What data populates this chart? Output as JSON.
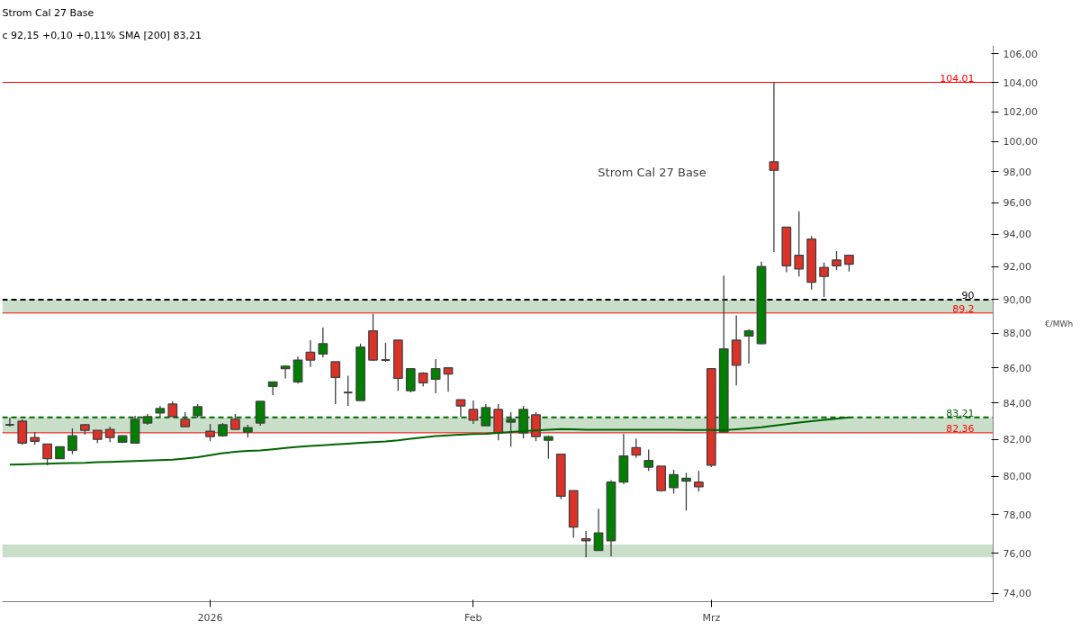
{
  "chart_data": {
    "type": "candlestick",
    "title": "Strom Cal 27 Base",
    "subtitle": "c 92,15 +0,10 +0,11% SMA [200] 83,21",
    "ylabel": "€/MWh",
    "categories": [
      null,
      null,
      null,
      null,
      null,
      null,
      null,
      null,
      null,
      null,
      null,
      null,
      null,
      null,
      null,
      null,
      "2026",
      null,
      null,
      null,
      null,
      null,
      null,
      null,
      null,
      null,
      null,
      null,
      null,
      null,
      null,
      null,
      null,
      null,
      null,
      null,
      null,
      "Feb",
      null,
      null,
      null,
      null,
      null,
      null,
      null,
      null,
      null,
      null,
      null,
      null,
      null,
      null,
      null,
      null,
      null,
      null,
      "Mrz",
      null,
      null,
      null,
      null,
      null,
      null,
      null,
      null,
      null,
      null,
      null
    ],
    "ohlc": [
      [
        82.8,
        83.2,
        82.7,
        82.8
      ],
      [
        83.0,
        83.1,
        81.7,
        81.8
      ],
      [
        82.1,
        82.4,
        81.7,
        81.9
      ],
      [
        81.75,
        81.75,
        80.6,
        80.95
      ],
      [
        80.95,
        81.6,
        80.95,
        81.6
      ],
      [
        81.4,
        82.6,
        81.2,
        82.2
      ],
      [
        82.8,
        82.85,
        82.25,
        82.5
      ],
      [
        82.5,
        82.5,
        81.8,
        82.0
      ],
      [
        82.55,
        82.7,
        81.85,
        82.1
      ],
      [
        81.85,
        82.2,
        81.8,
        82.2
      ],
      [
        81.8,
        83.3,
        81.8,
        83.1
      ],
      [
        82.9,
        83.4,
        82.8,
        83.25
      ],
      [
        83.45,
        83.85,
        83.25,
        83.7
      ],
      [
        83.95,
        84.1,
        83.25,
        83.25
      ],
      [
        83.1,
        83.5,
        82.7,
        82.7
      ],
      [
        83.3,
        83.95,
        83.2,
        83.8
      ],
      [
        82.45,
        82.85,
        81.9,
        82.15
      ],
      [
        82.2,
        82.9,
        82.15,
        82.8
      ],
      [
        83.1,
        83.4,
        82.55,
        82.55
      ],
      [
        82.4,
        82.8,
        82.1,
        82.65
      ],
      [
        82.9,
        84.1,
        82.75,
        84.1
      ],
      [
        84.95,
        85.2,
        84.45,
        85.2
      ],
      [
        85.95,
        86.15,
        85.4,
        86.1
      ],
      [
        85.2,
        86.65,
        85.1,
        86.45
      ],
      [
        86.9,
        87.6,
        86.05,
        86.45
      ],
      [
        86.8,
        88.35,
        86.6,
        87.4
      ],
      [
        86.35,
        86.35,
        83.95,
        85.45
      ],
      [
        84.6,
        85.55,
        83.85,
        84.6
      ],
      [
        84.15,
        87.4,
        84.15,
        87.2
      ],
      [
        88.15,
        89.15,
        86.4,
        86.45
      ],
      [
        86.45,
        87.45,
        86.35,
        86.45
      ],
      [
        87.6,
        87.6,
        84.7,
        85.4
      ],
      [
        84.7,
        85.95,
        84.6,
        85.95
      ],
      [
        85.7,
        85.75,
        84.95,
        85.15
      ],
      [
        85.35,
        86.5,
        84.55,
        85.95
      ],
      [
        86.0,
        86.0,
        84.65,
        85.65
      ],
      [
        84.2,
        84.2,
        83.25,
        83.85
      ],
      [
        83.65,
        84.15,
        82.85,
        83.05
      ],
      [
        82.75,
        83.95,
        82.75,
        83.75
      ],
      [
        83.65,
        83.95,
        81.95,
        82.35
      ],
      [
        82.95,
        83.5,
        81.6,
        83.1
      ],
      [
        82.35,
        83.85,
        82.05,
        83.65
      ],
      [
        83.35,
        83.5,
        81.9,
        82.15
      ],
      [
        81.95,
        82.2,
        80.95,
        82.15
      ],
      [
        81.2,
        81.2,
        78.8,
        78.95
      ],
      [
        79.25,
        79.25,
        76.8,
        77.35
      ],
      [
        76.75,
        77.15,
        75.8,
        76.65
      ],
      [
        76.15,
        78.3,
        76.15,
        77.05
      ],
      [
        76.65,
        79.8,
        75.85,
        79.7
      ],
      [
        79.7,
        82.3,
        79.6,
        81.1
      ],
      [
        81.55,
        82.05,
        81.0,
        81.15
      ],
      [
        80.5,
        81.45,
        80.3,
        80.85
      ],
      [
        80.55,
        80.55,
        79.2,
        79.25
      ],
      [
        79.4,
        80.35,
        79.1,
        80.1
      ],
      [
        79.75,
        80.2,
        78.2,
        79.9
      ],
      [
        79.7,
        80.3,
        79.2,
        79.45
      ],
      [
        85.95,
        85.95,
        80.5,
        80.6
      ],
      [
        82.4,
        91.45,
        82.4,
        87.1
      ],
      [
        87.6,
        89.05,
        85.0,
        86.15
      ],
      [
        87.85,
        88.25,
        86.25,
        88.15
      ],
      [
        87.4,
        92.3,
        87.35,
        92.0
      ],
      [
        98.65,
        104.01,
        92.9,
        98.1
      ],
      [
        94.45,
        94.45,
        91.65,
        92.05
      ],
      [
        92.7,
        95.45,
        91.4,
        91.85
      ],
      [
        93.7,
        93.9,
        90.6,
        91.05
      ],
      [
        91.95,
        92.25,
        90.15,
        91.4
      ],
      [
        92.4,
        92.95,
        91.8,
        92.05
      ],
      [
        92.7,
        92.7,
        91.7,
        92.15
      ]
    ],
    "series": [
      {
        "type": "line",
        "color": "#006400",
        "values": [
          80.63,
          80.65,
          80.67,
          80.68,
          80.7,
          80.72,
          80.73,
          80.76,
          80.78,
          80.8,
          80.83,
          80.85,
          80.87,
          80.9,
          80.96,
          81.03,
          81.14,
          81.25,
          81.32,
          81.37,
          81.4,
          81.46,
          81.53,
          81.59,
          81.64,
          81.68,
          81.73,
          81.77,
          81.81,
          81.85,
          81.89,
          81.95,
          82.03,
          82.11,
          82.18,
          82.22,
          82.26,
          82.29,
          82.31,
          82.36,
          82.41,
          82.45,
          82.49,
          82.53,
          82.56,
          82.55,
          82.53,
          82.53,
          82.53,
          82.53,
          82.53,
          82.53,
          82.53,
          82.53,
          82.52,
          82.51,
          82.51,
          82.5,
          82.55,
          82.6,
          82.66,
          82.75,
          82.84,
          82.93,
          83.0,
          83.07,
          83.14,
          83.21
        ]
      }
    ],
    "ylim": [
      73.6,
      106.6
    ],
    "log": true,
    "yticks": [
      {
        "value": 74,
        "label": "74,00"
      },
      {
        "value": 76,
        "label": "76,00"
      },
      {
        "value": 78,
        "label": "78,00"
      },
      {
        "value": 80,
        "label": "80,00"
      },
      {
        "value": 82,
        "label": "82,00"
      },
      {
        "value": 84,
        "label": "84,00"
      },
      {
        "value": 86,
        "label": "86,00"
      },
      {
        "value": 88,
        "label": "88,00"
      },
      {
        "value": 90,
        "label": "90,00"
      },
      {
        "value": 92,
        "label": "92,00"
      },
      {
        "value": 94,
        "label": "94,00"
      },
      {
        "value": 96,
        "label": "96,00"
      },
      {
        "value": 98,
        "label": "98,00"
      },
      {
        "value": 100,
        "label": "100,00"
      },
      {
        "value": 102,
        "label": "102,00"
      },
      {
        "value": 104,
        "label": "104,00"
      },
      {
        "value": 106,
        "label": "106,00"
      }
    ],
    "ref_lines": [
      {
        "axis": "y",
        "value": 104.01,
        "label": "104,01",
        "color": "#ff0000",
        "line_style": "solid"
      },
      {
        "axis": "y",
        "value": 90,
        "label": "90",
        "color": "#000000",
        "line_style": "dashed"
      },
      {
        "axis": "y",
        "value": 89.2,
        "label": "89,2",
        "color": "#ff0000",
        "line_style": "solid"
      },
      {
        "axis": "y",
        "value": 83.21,
        "label": "83,21",
        "color": "#006400",
        "line_style": "dashed"
      },
      {
        "axis": "y",
        "value": 82.36,
        "label": "82,36",
        "color": "#ff0000",
        "line_style": "solid"
      }
    ],
    "bands": [
      {
        "axis": "y",
        "from": 89.2,
        "to": 90,
        "color": "#bfd9bf"
      },
      {
        "axis": "y",
        "from": 82.36,
        "to": 83.21,
        "color": "#bfd9bf"
      },
      {
        "axis": "y",
        "from": 75.8,
        "to": 76.45,
        "color": "#bfd9bf"
      }
    ],
    "annotations": [
      "Strom Cal 27 Base"
    ],
    "grid": false
  }
}
